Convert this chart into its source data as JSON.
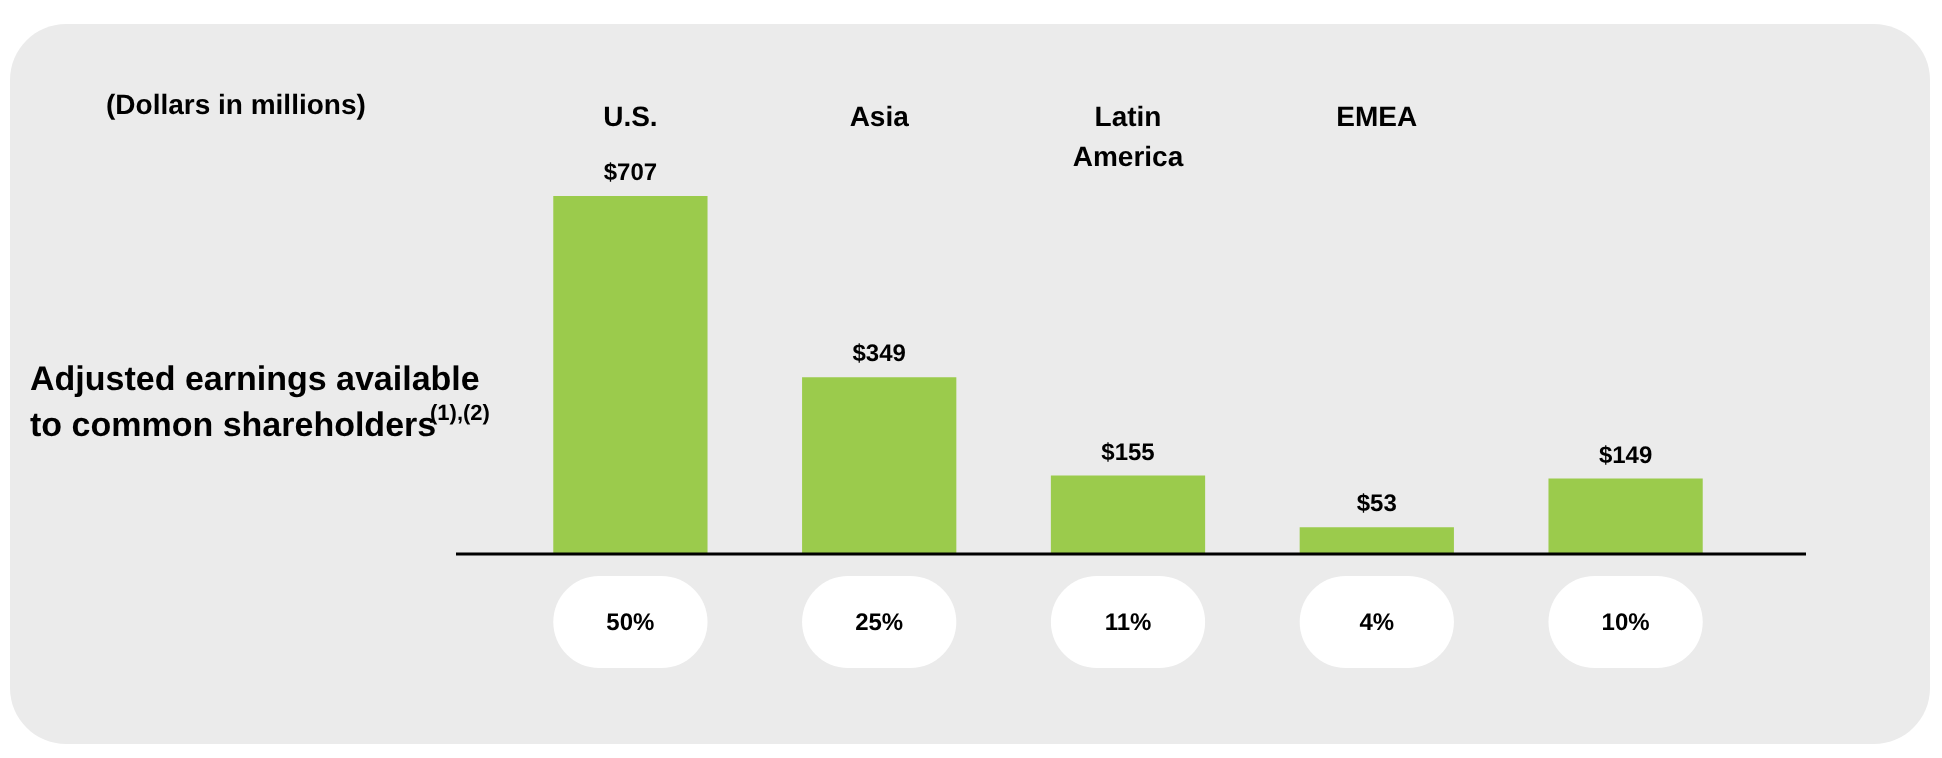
{
  "chart_data": {
    "type": "bar",
    "title": "(Dollars in millions)",
    "ylabel": "Adjusted earnings available to common shareholders$^{(1),(2)}$",
    "categories": [
      "U.S.",
      "Asia",
      "Latin America",
      "EMEA",
      null
    ],
    "color": "#9bcb4c",
    "values": [
      707,
      349,
      155,
      53,
      149
    ],
    "value_labels": [
      "$707",
      "$349",
      "$155",
      "$53",
      "$149"
    ],
    "annotations": [
      "50%",
      "25%",
      "11%",
      "4%",
      "10%"
    ]
  }
}
